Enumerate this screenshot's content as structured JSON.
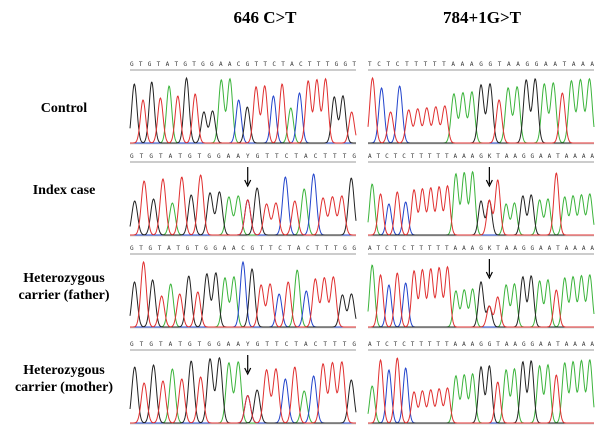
{
  "columns": [
    "646 C>T",
    "784+1G>T"
  ],
  "rows": [
    {
      "label": "Control",
      "sequences": [
        "GTGTATGTGGAACGTTCTACTTTGGT",
        "TCTCTTTTTAAAGGTAAGGAATAAA"
      ]
    },
    {
      "label": "Index case",
      "sequences": [
        "GTGTATGTGGAAYGTTCTACTTTG",
        "ATCTCTTTTTAAAGKTAAGGAATAAAA"
      ]
    },
    {
      "label": "Heterozygous carrier (father)",
      "sequences": [
        "GTGTATGTGGAACGTTCTACTTTGG",
        "ATCTCTTTTTAAAGKTAAGGAATAAAA"
      ]
    },
    {
      "label": "Heterozygous carrier (mother)",
      "sequences": [
        "GTGTATGTGGAAYGTTCTACTTTG",
        "ATCTCTTTTTAAAGGTAAGGAATAAAA"
      ]
    }
  ]
}
